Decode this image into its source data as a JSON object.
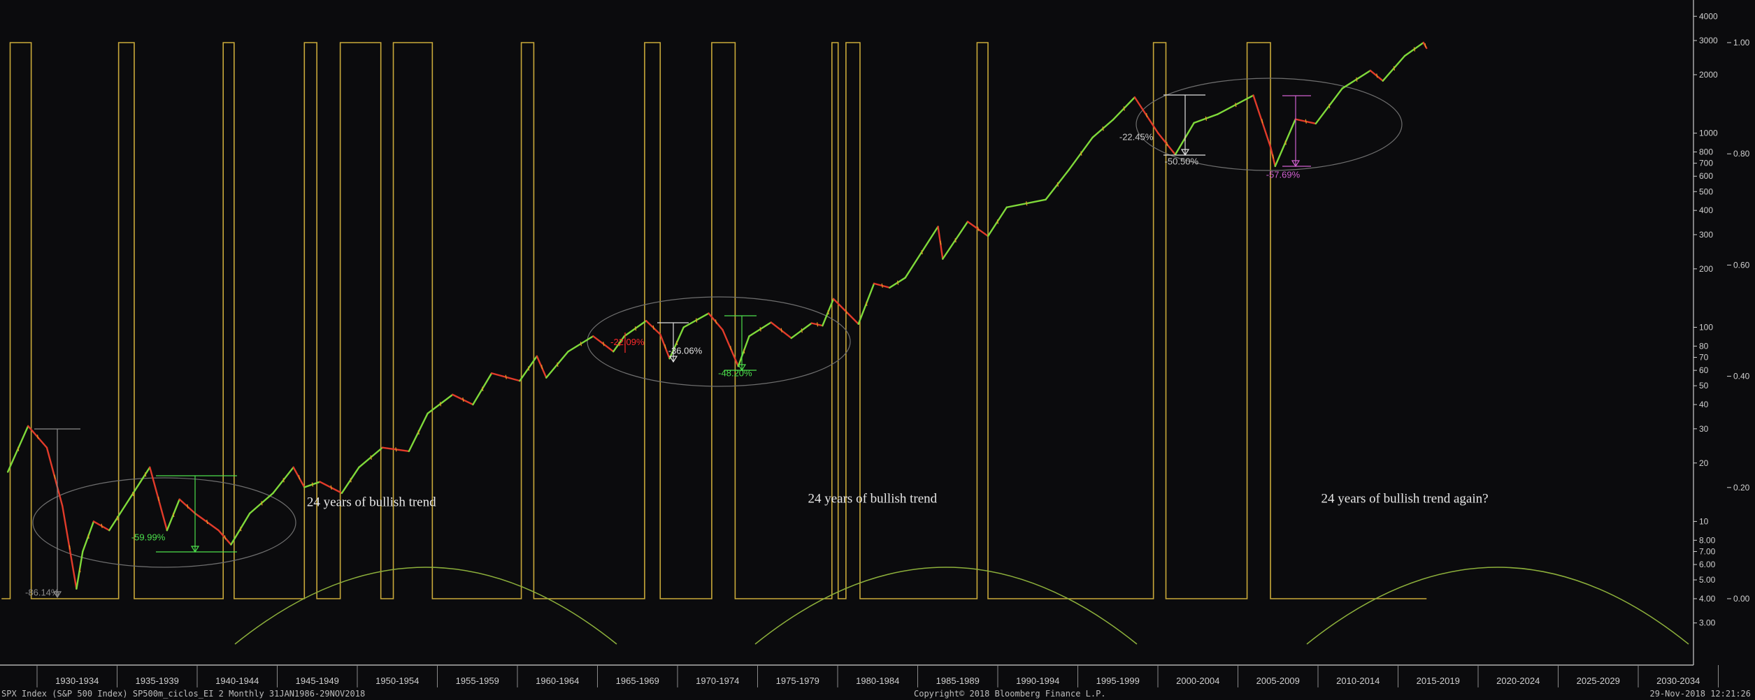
{
  "chart_data": {
    "type": "line",
    "scale": "log",
    "x_ticks": [
      "1930-1934",
      "1935-1939",
      "1940-1944",
      "1945-1949",
      "1950-1954",
      "1955-1959",
      "1960-1964",
      "1965-1969",
      "1970-1974",
      "1975-1979",
      "1980-1984",
      "1985-1989",
      "1990-1994",
      "1995-1999",
      "2000-2004",
      "2005-2009",
      "2010-2014",
      "2015-2019",
      "2020-2024",
      "2025-2029",
      "2030-2034"
    ],
    "y_ticks_left": [
      "4000",
      "3000",
      "2000",
      "1000",
      "800",
      "700",
      "600",
      "500",
      "400",
      "300",
      "200",
      "100",
      "80",
      "70",
      "60",
      "50",
      "40",
      "30",
      "20",
      "10",
      "8.00",
      "7.00",
      "6.00",
      "5.00",
      "4.00",
      "3.00"
    ],
    "y_ticks_right": [
      "1.00",
      "0.80",
      "0.60",
      "0.40",
      "0.20",
      "0.00"
    ],
    "series": [
      {
        "values": [
          [
            1928.0,
            18
          ],
          [
            1929.3,
            31
          ],
          [
            1930.5,
            24
          ],
          [
            1931.5,
            12
          ],
          [
            1932.4,
            4.5
          ],
          [
            1932.8,
            7
          ],
          [
            1933.5,
            10
          ],
          [
            1934.5,
            9
          ],
          [
            1935.5,
            12
          ],
          [
            1936.5,
            16
          ],
          [
            1937.1,
            19
          ],
          [
            1938.2,
            9
          ],
          [
            1939.0,
            13
          ],
          [
            1940.0,
            11
          ],
          [
            1941.5,
            9
          ],
          [
            1942.3,
            7.6
          ],
          [
            1943.5,
            11
          ],
          [
            1945.0,
            14
          ],
          [
            1946.3,
            19
          ],
          [
            1947.0,
            15
          ],
          [
            1948.0,
            16
          ],
          [
            1949.4,
            14
          ],
          [
            1950.5,
            19
          ],
          [
            1952.0,
            24
          ],
          [
            1953.7,
            23
          ],
          [
            1954.9,
            36
          ],
          [
            1956.5,
            45
          ],
          [
            1957.8,
            40
          ],
          [
            1959.0,
            58
          ],
          [
            1960.8,
            53
          ],
          [
            1961.9,
            71
          ],
          [
            1962.5,
            55
          ],
          [
            1963.9,
            75
          ],
          [
            1965.5,
            90
          ],
          [
            1966.8,
            75
          ],
          [
            1967.5,
            90
          ],
          [
            1968.9,
            108
          ],
          [
            1969.8,
            92
          ],
          [
            1970.4,
            69
          ],
          [
            1971.3,
            100
          ],
          [
            1972.9,
            118
          ],
          [
            1973.8,
            97
          ],
          [
            1974.8,
            63
          ],
          [
            1975.5,
            90
          ],
          [
            1976.9,
            106
          ],
          [
            1978.2,
            88
          ],
          [
            1979.5,
            105
          ],
          [
            1980.2,
            102
          ],
          [
            1980.9,
            140
          ],
          [
            1982.5,
            104
          ],
          [
            1983.5,
            168
          ],
          [
            1984.5,
            160
          ],
          [
            1985.5,
            180
          ],
          [
            1987.6,
            330
          ],
          [
            1987.9,
            225
          ],
          [
            1989.5,
            350
          ],
          [
            1990.8,
            295
          ],
          [
            1992.0,
            415
          ],
          [
            1994.5,
            455
          ],
          [
            1996.0,
            650
          ],
          [
            1997.5,
            950
          ],
          [
            1998.8,
            1170
          ],
          [
            2000.2,
            1530
          ],
          [
            2001.7,
            1000
          ],
          [
            2002.8,
            776
          ],
          [
            2004.0,
            1130
          ],
          [
            2005.5,
            1250
          ],
          [
            2007.8,
            1565
          ],
          [
            2008.9,
            850
          ],
          [
            2009.2,
            676
          ],
          [
            2010.5,
            1180
          ],
          [
            2011.8,
            1120
          ],
          [
            2013.5,
            1700
          ],
          [
            2015.3,
            2100
          ],
          [
            2016.1,
            1860
          ],
          [
            2017.5,
            2500
          ],
          [
            2018.7,
            2925
          ],
          [
            2018.9,
            2740
          ]
        ]
      }
    ],
    "binary_signal": {
      "high_intervals": [
        [
          1928.15,
          1929.5
        ],
        [
          1935.1,
          1936.1
        ],
        [
          1941.8,
          1942.5
        ],
        [
          1947.0,
          1947.8
        ],
        [
          1949.3,
          1951.9
        ],
        [
          1952.7,
          1955.2
        ],
        [
          1960.9,
          1961.7
        ],
        [
          1968.8,
          1969.8
        ],
        [
          1973.1,
          1974.6
        ],
        [
          1980.8,
          1981.2
        ],
        [
          1981.7,
          1982.6
        ],
        [
          1990.1,
          1990.8
        ],
        [
          2001.4,
          2002.2
        ],
        [
          2007.4,
          2008.9
        ]
      ],
      "end": 2018.9
    },
    "annotations": [
      {
        "text": "24 years of bullish trend",
        "x": 1951.3,
        "y": 12.0,
        "color": "#e8e8e8"
      },
      {
        "text": "24 years of bullish trend",
        "x": 1983.4,
        "y": 12.5,
        "color": "#e8e8e8"
      },
      {
        "text": "24 years of bullish trend again?",
        "x": 2017.5,
        "y": 12.5,
        "color": "#e8e8e8"
      },
      {
        "text": "-86.14%",
        "x": 1930.2,
        "y": 4.15,
        "color": "#8c8c8c"
      },
      {
        "text": "-59.99%",
        "x": 1937.0,
        "y": 8.0,
        "color": "#4ce04c"
      },
      {
        "text": "-22.09%",
        "x": 1967.7,
        "y": 81,
        "color": "#ff2a2a"
      },
      {
        "text": "-36.06%",
        "x": 1971.4,
        "y": 73,
        "color": "#e0e0e0"
      },
      {
        "text": "-48.20%",
        "x": 1974.6,
        "y": 56,
        "color": "#4ce04c"
      },
      {
        "text": "-22.45%",
        "x": 2000.3,
        "y": 920,
        "color": "#c8c8c8"
      },
      {
        "text": "-50.50%",
        "x": 2003.2,
        "y": 690,
        "color": "#c8c8c8"
      },
      {
        "text": "-57.69%",
        "x": 2009.7,
        "y": 590,
        "color": "#d060d0"
      }
    ]
  },
  "footer": {
    "left": "SPX Index (S&P 500 Index) SP500m_ciclos_EI 2  Monthly 31JAN1986-29NOV2018",
    "center": "Copyright© 2018 Bloomberg Finance L.P.",
    "right": "29-Nov-2018 12:21:26"
  }
}
